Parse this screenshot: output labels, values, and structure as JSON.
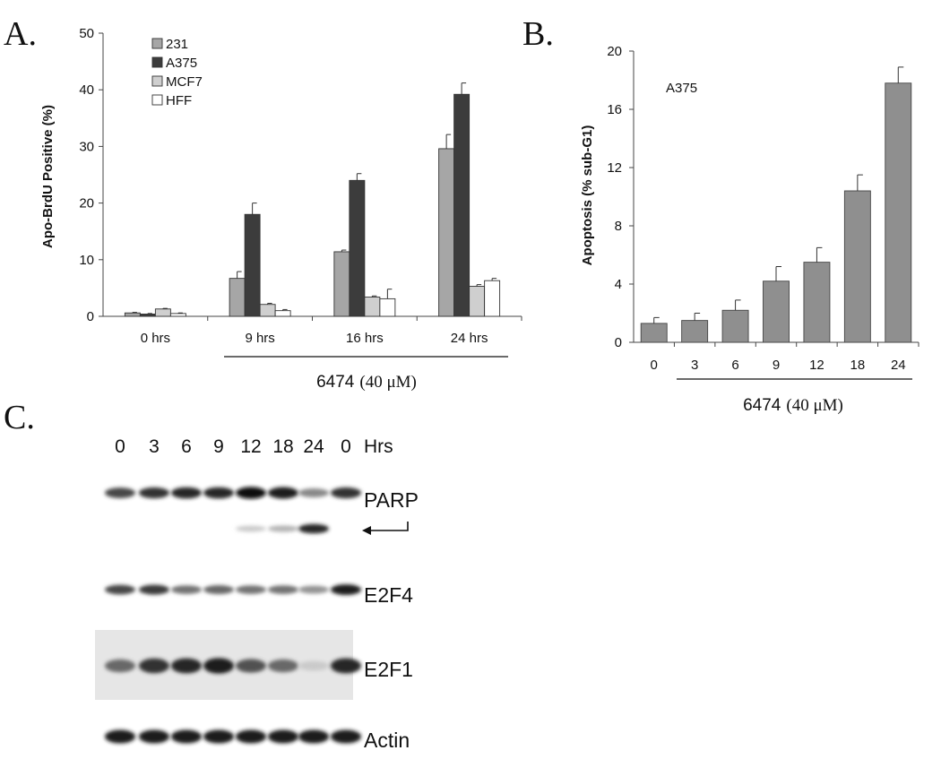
{
  "panels": {
    "a": "A.",
    "b": "B.",
    "c": "C."
  },
  "chart_data": [
    {
      "type": "bar",
      "panel": "A.",
      "ylabel": "Apo-BrdU Positive (%)",
      "ylim": [
        0,
        50
      ],
      "yticks": [
        0,
        10,
        20,
        30,
        40,
        50
      ],
      "categories": [
        "0 hrs",
        "9 hrs",
        "16 hrs",
        "24 hrs"
      ],
      "treatment_label": "6474",
      "treatment_conc": "(40 μM)",
      "legend_position": "top-left",
      "series": [
        {
          "name": "231",
          "color": "#a6a6a6",
          "values": [
            0.6,
            6.7,
            11.4,
            29.6
          ],
          "errors": [
            0.1,
            1.2,
            0.3,
            2.5
          ]
        },
        {
          "name": "A375",
          "color": "#3c3c3c",
          "values": [
            0.4,
            18.0,
            24.0,
            39.2
          ],
          "errors": [
            0.1,
            2.0,
            1.2,
            2.0
          ]
        },
        {
          "name": "MCF7",
          "color": "#cfcfcf",
          "values": [
            1.3,
            2.1,
            3.4,
            5.3
          ],
          "errors": [
            0.1,
            0.2,
            0.2,
            0.3
          ]
        },
        {
          "name": "HFF",
          "color": "#ffffff",
          "values": [
            0.5,
            1.0,
            3.1,
            6.3
          ],
          "errors": [
            0.1,
            0.2,
            1.7,
            0.4
          ]
        }
      ]
    },
    {
      "type": "bar",
      "panel": "B.",
      "annotation": "A375",
      "ylabel": "Apoptosis (% sub-G1)",
      "ylim": [
        0,
        20
      ],
      "yticks": [
        0,
        4,
        8,
        12,
        16,
        20
      ],
      "categories": [
        "0",
        "3",
        "6",
        "9",
        "12",
        "18",
        "24"
      ],
      "treatment_label": "6474",
      "treatment_conc": "(40 μM)",
      "color": "#8f8f8f",
      "values": [
        1.3,
        1.5,
        2.2,
        4.2,
        5.5,
        10.4,
        17.8
      ],
      "errors": [
        0.4,
        0.5,
        0.7,
        1.0,
        1.0,
        1.1,
        1.1
      ]
    }
  ],
  "blot": {
    "lanes": [
      "0",
      "3",
      "6",
      "9",
      "12",
      "18",
      "24",
      "0"
    ],
    "unit": "Hrs",
    "rows": [
      {
        "label": "PARP",
        "intensity": [
          0.75,
          0.85,
          0.9,
          0.9,
          1.0,
          0.95,
          0.45,
          0.85
        ]
      },
      {
        "label": "",
        "intensity": [
          0,
          0,
          0,
          0,
          0.15,
          0.25,
          0.9,
          0
        ]
      },
      {
        "label": "E2F4",
        "intensity": [
          0.75,
          0.8,
          0.55,
          0.6,
          0.55,
          0.55,
          0.4,
          0.95
        ]
      },
      {
        "label": "E2F1",
        "intensity": [
          0.6,
          0.85,
          0.9,
          0.95,
          0.7,
          0.6,
          0.15,
          0.9
        ]
      },
      {
        "label": "Actin",
        "intensity": [
          0.95,
          0.95,
          0.95,
          0.95,
          0.95,
          0.95,
          0.95,
          0.95
        ]
      }
    ]
  }
}
